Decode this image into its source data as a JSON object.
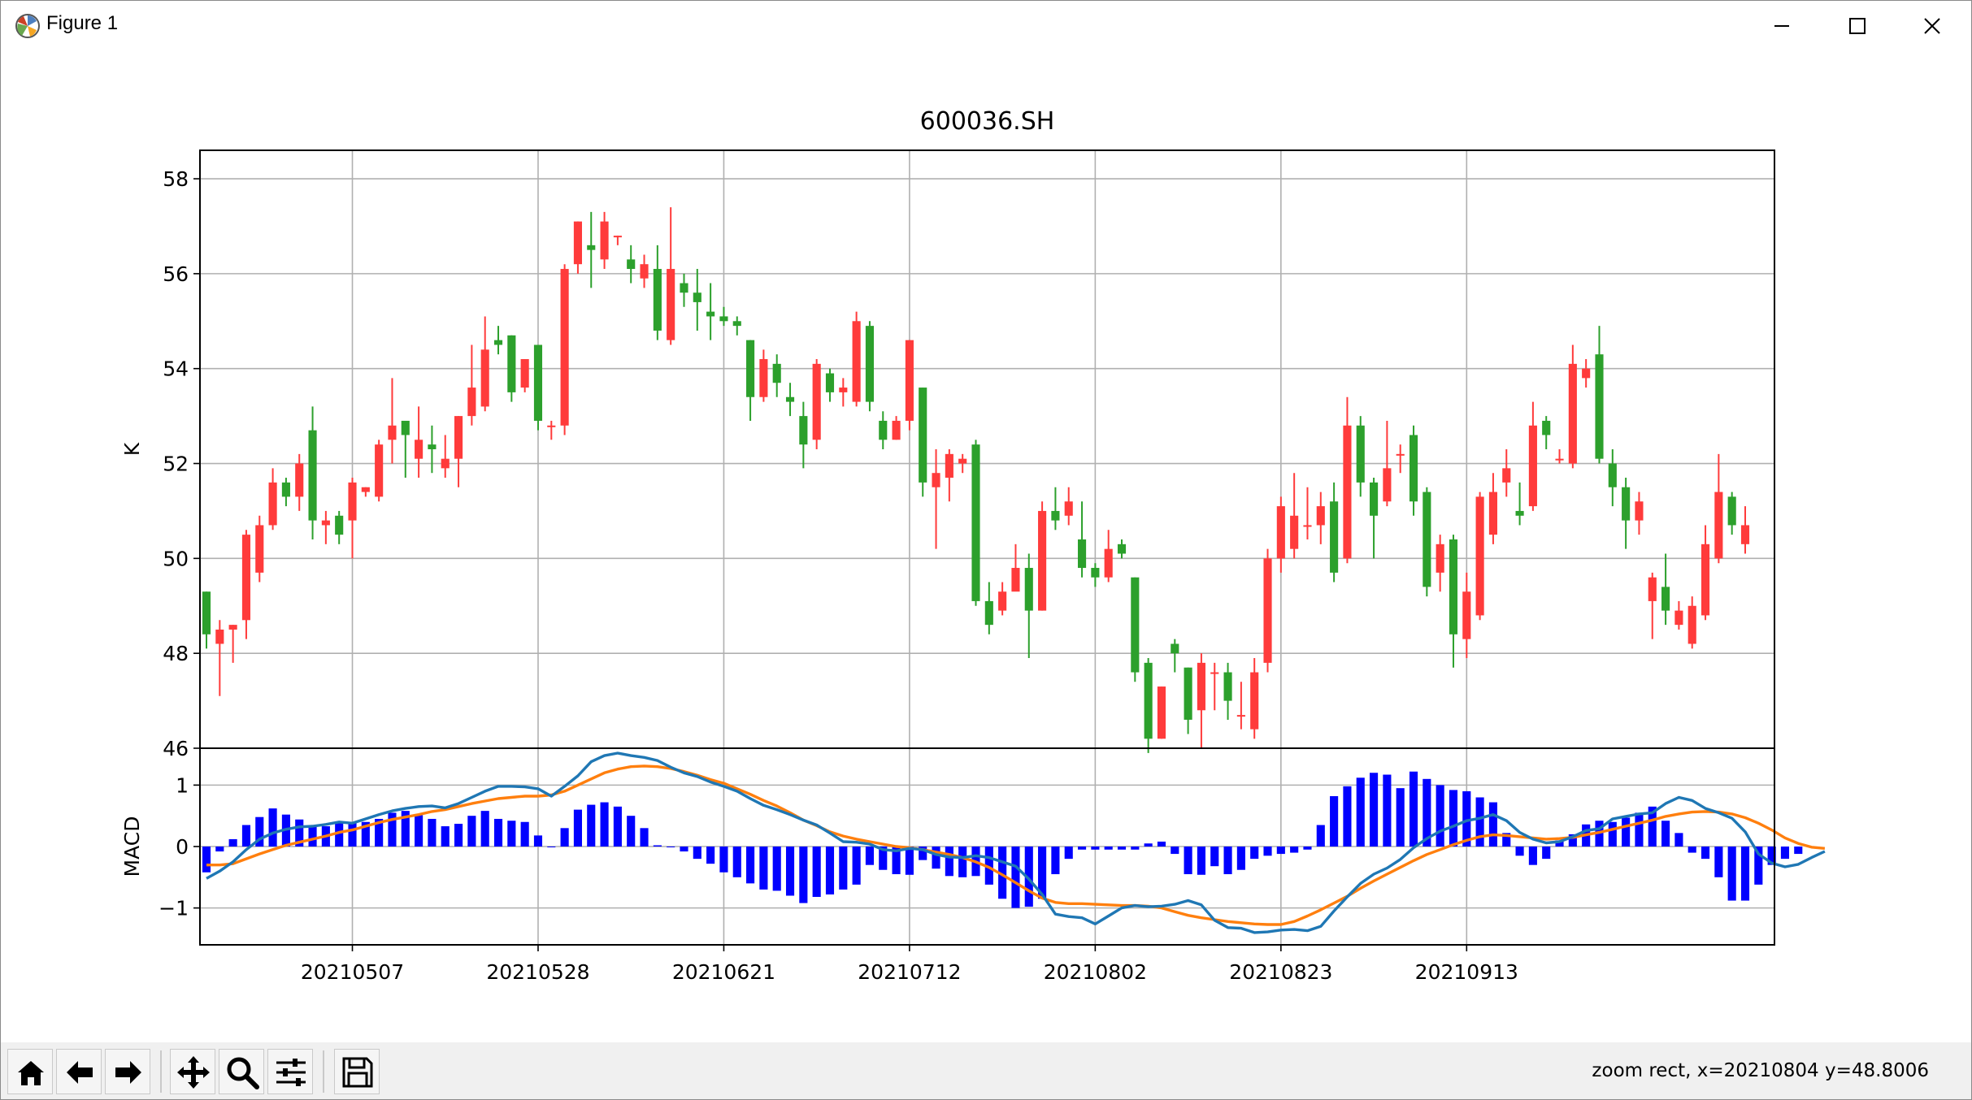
{
  "window": {
    "title": "Figure 1"
  },
  "toolbar": {
    "buttons": [
      {
        "name": "home-button",
        "icon": "home-icon"
      },
      {
        "name": "back-button",
        "icon": "arrow-left-icon"
      },
      {
        "name": "forward-button",
        "icon": "arrow-right-icon"
      },
      {
        "name": "pan-button",
        "icon": "move-icon"
      },
      {
        "name": "zoom-button",
        "icon": "magnifier-icon"
      },
      {
        "name": "configure-subplots-button",
        "icon": "sliders-icon"
      },
      {
        "name": "save-button",
        "icon": "floppy-disk-icon"
      }
    ],
    "status": "zoom rect, x=20210804 y=48.8006"
  },
  "chart_data": [
    {
      "type": "candlestick",
      "title": "600036.SH",
      "ylabel": "K",
      "ylim": [
        46,
        58.6
      ],
      "yticks": [
        "46",
        "48",
        "50",
        "52",
        "54",
        "56",
        "58"
      ],
      "xticks": [
        "20210507",
        "20210528",
        "20210621",
        "20210712",
        "20210802",
        "20210823",
        "20210913"
      ],
      "grid": true,
      "up_color": "#ff3b3b",
      "down_color": "#2ca02c",
      "candles": [
        [
          49.3,
          48.4,
          49.3,
          48.1
        ],
        [
          48.2,
          48.5,
          48.7,
          47.1
        ],
        [
          48.5,
          48.6,
          48.6,
          47.8
        ],
        [
          48.7,
          50.5,
          50.6,
          48.3
        ],
        [
          49.7,
          50.7,
          50.9,
          49.5
        ],
        [
          50.7,
          51.6,
          51.9,
          50.6
        ],
        [
          51.6,
          51.3,
          51.7,
          51.1
        ],
        [
          51.3,
          52.0,
          52.2,
          51.0
        ],
        [
          52.7,
          50.8,
          53.2,
          50.4
        ],
        [
          50.7,
          50.8,
          51.0,
          50.3
        ],
        [
          50.9,
          50.5,
          51.0,
          50.3
        ],
        [
          50.8,
          51.6,
          51.7,
          50.0
        ],
        [
          51.4,
          51.5,
          51.5,
          51.3
        ],
        [
          51.3,
          52.4,
          52.5,
          51.2
        ],
        [
          52.5,
          52.8,
          53.8,
          52.0
        ],
        [
          52.9,
          52.6,
          52.9,
          51.7
        ],
        [
          52.1,
          52.5,
          53.2,
          51.7
        ],
        [
          52.4,
          52.3,
          52.8,
          51.8
        ],
        [
          51.9,
          52.1,
          52.6,
          51.7
        ],
        [
          52.1,
          53.0,
          53.0,
          51.5
        ],
        [
          53.0,
          53.6,
          54.5,
          52.8
        ],
        [
          53.2,
          54.4,
          55.1,
          53.1
        ],
        [
          54.6,
          54.5,
          54.9,
          54.3
        ],
        [
          54.7,
          53.5,
          54.7,
          53.3
        ],
        [
          53.6,
          54.2,
          54.2,
          53.5
        ],
        [
          54.5,
          52.9,
          54.5,
          52.7
        ],
        [
          52.8,
          52.8,
          52.9,
          52.5
        ],
        [
          52.8,
          56.1,
          56.2,
          52.6
        ],
        [
          56.2,
          57.1,
          57.1,
          56.0
        ],
        [
          56.6,
          56.5,
          57.3,
          55.7
        ],
        [
          56.3,
          57.1,
          57.3,
          56.1
        ],
        [
          56.8,
          56.8,
          56.8,
          56.6
        ],
        [
          56.3,
          56.1,
          56.6,
          55.8
        ],
        [
          55.9,
          56.2,
          56.4,
          55.7
        ],
        [
          56.1,
          54.8,
          56.6,
          54.6
        ],
        [
          54.6,
          56.1,
          57.4,
          54.5
        ],
        [
          55.8,
          55.6,
          56.0,
          55.3
        ],
        [
          55.6,
          55.4,
          56.1,
          54.8
        ],
        [
          55.2,
          55.1,
          55.8,
          54.6
        ],
        [
          55.1,
          55.0,
          55.3,
          54.9
        ],
        [
          55.0,
          54.9,
          55.1,
          54.7
        ],
        [
          54.6,
          53.4,
          54.6,
          52.9
        ],
        [
          53.4,
          54.2,
          54.4,
          53.3
        ],
        [
          54.1,
          53.7,
          54.3,
          53.4
        ],
        [
          53.4,
          53.3,
          53.7,
          53.0
        ],
        [
          53.0,
          52.4,
          53.3,
          51.9
        ],
        [
          52.5,
          54.1,
          54.2,
          52.3
        ],
        [
          53.9,
          53.5,
          54.0,
          53.3
        ],
        [
          53.5,
          53.6,
          53.8,
          53.2
        ],
        [
          53.3,
          55.0,
          55.2,
          53.2
        ],
        [
          54.9,
          53.3,
          55.0,
          53.1
        ],
        [
          52.9,
          52.5,
          53.1,
          52.3
        ],
        [
          52.5,
          52.9,
          53.0,
          52.5
        ],
        [
          52.9,
          54.6,
          54.6,
          52.7
        ],
        [
          53.6,
          51.6,
          53.6,
          51.3
        ],
        [
          51.5,
          51.8,
          52.3,
          50.2
        ],
        [
          51.7,
          52.2,
          52.3,
          51.2
        ],
        [
          52.0,
          52.1,
          52.2,
          51.8
        ],
        [
          52.4,
          49.1,
          52.5,
          49.0
        ],
        [
          49.1,
          48.6,
          49.5,
          48.4
        ],
        [
          48.9,
          49.3,
          49.5,
          48.8
        ],
        [
          49.3,
          49.8,
          50.3,
          49.4
        ],
        [
          49.8,
          48.9,
          50.1,
          47.9
        ],
        [
          48.9,
          51.0,
          51.2,
          48.9
        ],
        [
          51.0,
          50.8,
          51.5,
          50.6
        ],
        [
          50.9,
          51.2,
          51.5,
          50.7
        ],
        [
          50.4,
          49.8,
          51.2,
          49.6
        ],
        [
          49.8,
          49.6,
          49.9,
          49.4
        ],
        [
          49.6,
          50.2,
          50.6,
          49.5
        ],
        [
          50.3,
          50.1,
          50.4,
          50.0
        ],
        [
          49.6,
          47.6,
          49.6,
          47.4
        ],
        [
          47.8,
          46.2,
          47.9,
          45.9
        ],
        [
          46.2,
          47.3,
          47.3,
          46.2
        ],
        [
          48.2,
          48.0,
          48.3,
          47.6
        ],
        [
          47.7,
          46.6,
          47.7,
          46.3
        ],
        [
          46.8,
          47.8,
          48.0,
          46.0
        ],
        [
          47.6,
          47.6,
          47.8,
          46.8
        ],
        [
          47.6,
          47.0,
          47.8,
          46.6
        ],
        [
          46.7,
          46.7,
          47.4,
          46.4
        ],
        [
          46.4,
          47.6,
          47.9,
          46.2
        ],
        [
          47.8,
          50.0,
          50.2,
          47.6
        ],
        [
          50.0,
          51.1,
          51.3,
          49.7
        ],
        [
          50.2,
          50.9,
          51.8,
          50.0
        ],
        [
          50.7,
          50.7,
          51.5,
          50.4
        ],
        [
          50.7,
          51.1,
          51.4,
          50.3
        ],
        [
          51.2,
          49.7,
          51.6,
          49.5
        ],
        [
          50.0,
          52.8,
          53.4,
          49.9
        ],
        [
          52.8,
          51.6,
          53.0,
          51.3
        ],
        [
          51.6,
          50.9,
          51.7,
          50.0
        ],
        [
          51.2,
          51.9,
          52.9,
          51.1
        ],
        [
          52.2,
          52.2,
          52.4,
          51.8
        ],
        [
          52.6,
          51.2,
          52.8,
          50.9
        ],
        [
          51.4,
          49.4,
          51.5,
          49.2
        ],
        [
          49.7,
          50.3,
          50.5,
          49.3
        ],
        [
          50.4,
          48.4,
          50.5,
          47.7
        ],
        [
          48.3,
          49.3,
          49.7,
          47.9
        ],
        [
          48.8,
          51.3,
          51.4,
          48.7
        ],
        [
          50.5,
          51.4,
          51.8,
          50.3
        ],
        [
          51.6,
          51.9,
          52.3,
          51.3
        ],
        [
          51.0,
          50.9,
          51.6,
          50.7
        ],
        [
          51.1,
          52.8,
          53.3,
          51.0
        ],
        [
          52.9,
          52.6,
          53.0,
          52.3
        ],
        [
          52.1,
          52.1,
          52.3,
          52.0
        ],
        [
          52.0,
          54.1,
          54.5,
          51.9
        ],
        [
          53.8,
          54.0,
          54.2,
          53.6
        ],
        [
          54.3,
          52.1,
          54.9,
          52.0
        ],
        [
          52.0,
          51.5,
          52.3,
          51.1
        ],
        [
          51.5,
          50.8,
          51.7,
          50.2
        ],
        [
          50.8,
          51.2,
          51.4,
          50.5
        ],
        [
          49.1,
          49.6,
          49.7,
          48.3
        ],
        [
          49.4,
          48.9,
          50.1,
          48.6
        ],
        [
          48.6,
          48.9,
          49.1,
          48.5
        ],
        [
          48.2,
          49.0,
          49.2,
          48.1
        ],
        [
          48.8,
          50.3,
          50.7,
          48.7
        ],
        [
          50.0,
          51.4,
          52.2,
          49.9
        ],
        [
          51.3,
          50.7,
          51.4,
          50.5
        ],
        [
          50.3,
          50.7,
          51.1,
          50.1
        ]
      ],
      "macd_ylabel": "MACD",
      "macd_yticks": [
        "−1",
        "0",
        "1"
      ],
      "macd_ylim": [
        -1.6,
        1.6
      ],
      "macd_series": [
        {
          "name": "",
          "color": "#1f77b4",
          "key": "dif"
        },
        {
          "name": "",
          "color": "#ff7f0e",
          "key": "dea"
        },
        {
          "name": "",
          "color": "#0000ff",
          "key": "hist"
        }
      ],
      "dif": [
        -0.52,
        -0.4,
        -0.25,
        -0.05,
        0.12,
        0.22,
        0.28,
        0.32,
        0.33,
        0.36,
        0.4,
        0.38,
        0.45,
        0.52,
        0.58,
        0.62,
        0.65,
        0.66,
        0.63,
        0.7,
        0.8,
        0.9,
        0.98,
        0.98,
        0.97,
        0.94,
        0.82,
        0.98,
        1.15,
        1.38,
        1.48,
        1.52,
        1.48,
        1.45,
        1.4,
        1.29,
        1.2,
        1.14,
        1.05,
        0.98,
        0.9,
        0.78,
        0.67,
        0.6,
        0.52,
        0.43,
        0.35,
        0.22,
        0.08,
        0.07,
        0.04,
        -0.05,
        -0.07,
        -0.03,
        -0.05,
        -0.13,
        -0.17,
        -0.18,
        -0.15,
        -0.18,
        -0.25,
        -0.32,
        -0.53,
        -0.78,
        -1.1,
        -1.14,
        -1.16,
        -1.26,
        -1.13,
        -1.0,
        -0.96,
        -0.98,
        -0.97,
        -0.94,
        -0.88,
        -0.95,
        -1.2,
        -1.32,
        -1.33,
        -1.4,
        -1.39,
        -1.36,
        -1.35,
        -1.37,
        -1.3,
        -1.05,
        -0.82,
        -0.6,
        -0.45,
        -0.35,
        -0.21,
        -0.02,
        0.13,
        0.25,
        0.33,
        0.42,
        0.46,
        0.52,
        0.42,
        0.23,
        0.12,
        0.06,
        0.08,
        0.16,
        0.26,
        0.29,
        0.45,
        0.49,
        0.53,
        0.55,
        0.7,
        0.8,
        0.75,
        0.62,
        0.55,
        0.46,
        0.24,
        -0.12,
        -0.27,
        -0.33,
        -0.29,
        -0.18,
        -0.08
      ],
      "dea": [
        -0.3,
        -0.3,
        -0.28,
        -0.2,
        -0.12,
        -0.05,
        0.02,
        0.07,
        0.12,
        0.17,
        0.23,
        0.27,
        0.33,
        0.39,
        0.44,
        0.48,
        0.52,
        0.57,
        0.6,
        0.65,
        0.7,
        0.74,
        0.78,
        0.8,
        0.82,
        0.82,
        0.84,
        0.9,
        1.0,
        1.1,
        1.2,
        1.26,
        1.3,
        1.31,
        1.3,
        1.27,
        1.22,
        1.16,
        1.09,
        1.03,
        0.94,
        0.85,
        0.75,
        0.66,
        0.55,
        0.43,
        0.34,
        0.24,
        0.17,
        0.12,
        0.08,
        0.04,
        0.0,
        -0.02,
        -0.05,
        -0.09,
        -0.13,
        -0.18,
        -0.25,
        -0.34,
        -0.46,
        -0.59,
        -0.72,
        -0.84,
        -0.91,
        -0.93,
        -0.93,
        -0.94,
        -0.95,
        -0.96,
        -0.96,
        -0.97,
        -1.0,
        -1.06,
        -1.12,
        -1.16,
        -1.19,
        -1.22,
        -1.24,
        -1.26,
        -1.27,
        -1.27,
        -1.22,
        -1.13,
        -1.03,
        -0.92,
        -0.81,
        -0.68,
        -0.56,
        -0.45,
        -0.34,
        -0.23,
        -0.13,
        -0.05,
        0.03,
        0.1,
        0.16,
        0.19,
        0.18,
        0.16,
        0.14,
        0.12,
        0.13,
        0.15,
        0.19,
        0.23,
        0.28,
        0.33,
        0.38,
        0.43,
        0.49,
        0.53,
        0.56,
        0.57,
        0.56,
        0.53,
        0.47,
        0.38,
        0.27,
        0.14,
        0.05,
        -0.01,
        -0.03
      ],
      "hist": [
        -0.42,
        -0.08,
        0.12,
        0.35,
        0.48,
        0.62,
        0.52,
        0.44,
        0.35,
        0.33,
        0.38,
        0.4,
        0.4,
        0.45,
        0.55,
        0.58,
        0.51,
        0.45,
        0.33,
        0.37,
        0.5,
        0.58,
        0.45,
        0.42,
        0.4,
        0.18,
        0.0,
        0.3,
        0.6,
        0.68,
        0.72,
        0.65,
        0.5,
        0.3,
        0.02,
        0.0,
        -0.08,
        -0.2,
        -0.28,
        -0.42,
        -0.5,
        -0.6,
        -0.7,
        -0.72,
        -0.8,
        -0.92,
        -0.82,
        -0.78,
        -0.7,
        -0.62,
        -0.3,
        -0.38,
        -0.45,
        -0.46,
        -0.22,
        -0.36,
        -0.48,
        -0.5,
        -0.48,
        -0.62,
        -0.85,
        -1.0,
        -0.98,
        -0.85,
        -0.45,
        -0.2,
        -0.05,
        -0.05,
        -0.05,
        -0.05,
        -0.05,
        0.05,
        0.08,
        -0.12,
        -0.45,
        -0.46,
        -0.32,
        -0.45,
        -0.38,
        -0.2,
        -0.15,
        -0.12,
        -0.1,
        -0.05,
        0.35,
        0.82,
        0.98,
        1.12,
        1.2,
        1.17,
        0.95,
        1.22,
        1.1,
        1.0,
        0.92,
        0.9,
        0.8,
        0.72,
        0.22,
        -0.15,
        -0.3,
        -0.2,
        0.1,
        0.2,
        0.36,
        0.42,
        0.4,
        0.47,
        0.55,
        0.65,
        0.42,
        0.22,
        -0.1,
        -0.2,
        -0.5,
        -0.88,
        -0.88,
        -0.62,
        -0.3,
        -0.2,
        -0.12
      ]
    }
  ]
}
